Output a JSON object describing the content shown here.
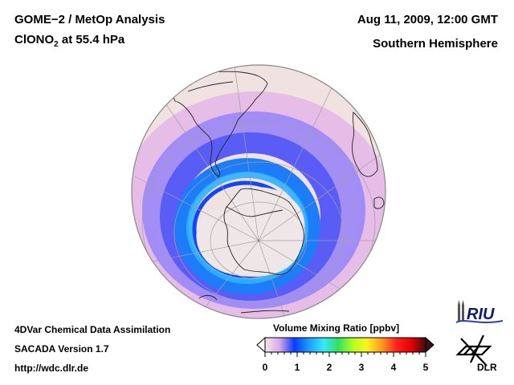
{
  "header": {
    "title_line1": "GOME−2 / MetOp Analysis",
    "species_main": "ClONO",
    "species_sub": "2",
    "species_rest": " at 55.4 hPa",
    "datetime": "Aug 11, 2009, 12:00 GMT",
    "region": "Southern Hemisphere"
  },
  "footer": {
    "line1": "4DVar Chemical Data Assimilation",
    "line2": "SACADA Version 1.7",
    "line3": "http://wdc.dlr.de"
  },
  "map": {
    "projection": "orthographic",
    "hemisphere": "south",
    "description": "ClONO2 volume mixing ratio field over the Antarctic; low values (~0) inside the polar vortex over Antarctica, ring of ~0.5-1.5 ppbv around the vortex edge, background ~0.2-0.5 ppbv at mid-latitudes"
  },
  "colorbar": {
    "title": "Volume Mixing Ratio [ppbv]",
    "min": 0,
    "max": 5,
    "tick_labels": [
      "0",
      "1",
      "2",
      "3",
      "4",
      "5"
    ],
    "extend": "both",
    "colors": [
      "#f3e6ea",
      "#d9a8e6",
      "#0a3cff",
      "#1c9cff",
      "#35e8ff",
      "#30e060",
      "#b0ff20",
      "#fff020",
      "#ff9a20",
      "#ff2020",
      "#e80000",
      "#3a1010"
    ]
  },
  "logos": {
    "riu": "RIU",
    "dlr": "DLR"
  }
}
